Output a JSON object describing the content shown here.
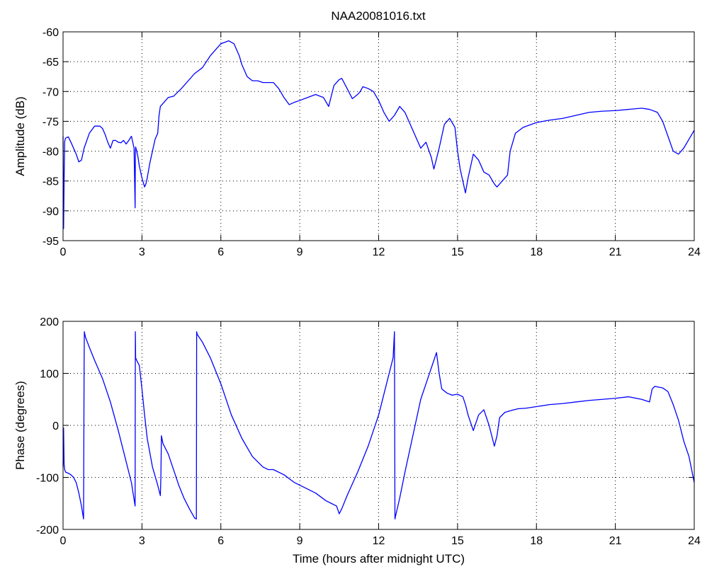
{
  "figure": {
    "title": "NAA20081016.txt"
  },
  "chart_data": [
    {
      "type": "line",
      "title": "NAA20081016.txt",
      "xlabel": "",
      "ylabel": "Amplitude (dB)",
      "xlim": [
        0,
        24
      ],
      "ylim": [
        -95,
        -60
      ],
      "xticks": [
        "0",
        "3",
        "6",
        "9",
        "12",
        "15",
        "18",
        "21",
        "24"
      ],
      "yticks": [
        "-60",
        "-65",
        "-70",
        "-75",
        "-80",
        "-85",
        "-90",
        "-95"
      ],
      "grid": true,
      "line_color": "#0000ff",
      "series": [
        {
          "x": [
            0,
            0.02,
            0.04,
            0.06,
            0.08,
            0.1,
            0.2,
            0.3,
            0.5,
            0.6,
            0.7,
            0.8,
            1.0,
            1.2,
            1.4,
            1.5,
            1.6,
            1.7,
            1.8,
            1.9,
            2.0,
            2.1,
            2.2,
            2.3,
            2.4,
            2.5,
            2.6,
            2.7,
            2.74,
            2.75,
            2.76,
            2.8,
            2.85,
            2.9,
            3.0,
            3.1,
            3.15,
            3.2,
            3.3,
            3.4,
            3.5,
            3.6,
            3.65,
            3.7,
            3.8,
            4.0,
            4.2,
            4.5,
            5.0,
            5.3,
            5.6,
            6.0,
            6.3,
            6.5,
            6.7,
            6.8,
            6.9,
            7.0,
            7.2,
            7.4,
            7.6,
            7.8,
            8.0,
            8.2,
            8.4,
            8.6,
            8.8,
            9.0,
            9.3,
            9.6,
            9.9,
            10.1,
            10.3,
            10.5,
            10.6,
            10.8,
            11.0,
            11.2,
            11.3,
            11.4,
            11.6,
            11.8,
            12.0,
            12.2,
            12.4,
            12.6,
            12.8,
            13.0,
            13.2,
            13.4,
            13.6,
            13.8,
            14.0,
            14.1,
            14.3,
            14.5,
            14.7,
            14.9,
            15.0,
            15.1,
            15.3,
            15.4,
            15.6,
            15.8,
            16.0,
            16.2,
            16.4,
            16.5,
            16.7,
            16.9,
            17.0,
            17.2,
            17.5,
            18.0,
            18.5,
            19.0,
            19.5,
            20.0,
            20.5,
            21.0,
            21.5,
            22.0,
            22.3,
            22.6,
            22.8,
            23.0,
            23.2,
            23.4,
            23.6,
            23.8,
            24.0
          ],
          "y": [
            -77.5,
            -93,
            -85,
            -78.5,
            -78,
            -77.8,
            -77.6,
            -78.5,
            -80.5,
            -81.8,
            -81.5,
            -79.5,
            -77,
            -75.8,
            -75.8,
            -76.2,
            -77.2,
            -78.5,
            -79.5,
            -78.2,
            -78.2,
            -78.5,
            -78.6,
            -78.2,
            -78.8,
            -78.2,
            -77.5,
            -79.5,
            -89.5,
            -80.5,
            -79.3,
            -80,
            -81,
            -82.5,
            -84.5,
            -86,
            -85.5,
            -84.5,
            -82,
            -80,
            -78,
            -77,
            -74,
            -72.5,
            -72,
            -71,
            -70.8,
            -69.5,
            -67,
            -66,
            -64,
            -62,
            -61.5,
            -62,
            -64,
            -65.5,
            -66.5,
            -67.5,
            -68.2,
            -68.2,
            -68.5,
            -68.5,
            -68.5,
            -69.5,
            -71,
            -72.2,
            -71.8,
            -71.5,
            -71,
            -70.5,
            -71,
            -72.5,
            -69,
            -68,
            -67.8,
            -69.5,
            -71.2,
            -70.5,
            -70,
            -69.2,
            -69.5,
            -70,
            -71.5,
            -73.5,
            -75,
            -74,
            -72.5,
            -73.5,
            -75.5,
            -77.5,
            -79.5,
            -78.5,
            -81,
            -83,
            -79.5,
            -75.5,
            -74.5,
            -76,
            -80,
            -83,
            -87,
            -84.5,
            -80.5,
            -81.5,
            -83.5,
            -84,
            -85.5,
            -86,
            -85,
            -84,
            -80,
            -77,
            -76,
            -75.2,
            -74.8,
            -74.5,
            -74,
            -73.5,
            -73.3,
            -73.2,
            -73,
            -72.8,
            -73,
            -73.5,
            -75,
            -77.5,
            -80,
            -80.5,
            -79.5,
            -78,
            -76.5
          ]
        }
      ]
    },
    {
      "type": "line",
      "title": "",
      "xlabel": "Time (hours after midnight UTC)",
      "ylabel": "Phase (degrees)",
      "xlim": [
        0,
        24
      ],
      "ylim": [
        -200,
        200
      ],
      "xticks": [
        "0",
        "3",
        "6",
        "9",
        "12",
        "15",
        "18",
        "21",
        "24"
      ],
      "yticks": [
        "200",
        "100",
        "0",
        "-100",
        "-200"
      ],
      "grid": true,
      "line_color": "#0000ff",
      "series": [
        {
          "x": [
            0,
            0.02,
            0.04,
            0.06,
            0.1,
            0.2,
            0.3,
            0.4,
            0.5,
            0.6,
            0.7,
            0.78,
            0.8,
            0.81,
            0.85,
            1.0,
            1.2,
            1.5,
            1.8,
            2.1,
            2.4,
            2.6,
            2.74,
            2.75,
            2.76,
            2.8,
            2.9,
            3.0,
            3.1,
            3.2,
            3.4,
            3.6,
            3.7,
            3.72,
            3.74,
            3.76,
            3.8,
            4.0,
            4.2,
            4.4,
            4.6,
            4.8,
            5.0,
            5.07,
            5.08,
            5.1,
            5.3,
            5.6,
            6.0,
            6.4,
            6.8,
            7.2,
            7.6,
            7.8,
            8.0,
            8.4,
            8.8,
            9.2,
            9.6,
            10.0,
            10.2,
            10.4,
            10.5,
            10.6,
            10.8,
            11.2,
            11.6,
            12.0,
            12.3,
            12.55,
            12.6,
            12.62,
            12.64,
            12.8,
            13.0,
            13.3,
            13.6,
            13.9,
            14.1,
            14.2,
            14.3,
            14.4,
            14.6,
            14.8,
            15.0,
            15.2,
            15.3,
            15.4,
            15.6,
            15.8,
            16.0,
            16.2,
            16.4,
            16.5,
            16.6,
            16.8,
            17.0,
            17.3,
            17.6,
            18.0,
            18.5,
            19.0,
            19.5,
            20.0,
            20.5,
            21.0,
            21.5,
            22.0,
            22.3,
            22.4,
            22.5,
            22.8,
            23.0,
            23.2,
            23.4,
            23.6,
            23.8,
            24.0
          ],
          "y": [
            -80,
            -5,
            -75,
            -85,
            -90,
            -92,
            -95,
            -100,
            -110,
            -130,
            -155,
            -180,
            110,
            180,
            170,
            150,
            125,
            90,
            45,
            -10,
            -70,
            -110,
            -155,
            180,
            130,
            125,
            115,
            70,
            20,
            -25,
            -80,
            -115,
            -135,
            -100,
            -20,
            -25,
            -35,
            -55,
            -85,
            -115,
            -140,
            -160,
            -178,
            -180,
            180,
            175,
            160,
            130,
            80,
            20,
            -25,
            -60,
            -80,
            -85,
            -85,
            -95,
            -110,
            -120,
            -130,
            -145,
            -150,
            -155,
            -170,
            -160,
            -135,
            -90,
            -40,
            20,
            80,
            130,
            180,
            -180,
            -175,
            -140,
            -90,
            -20,
            50,
            95,
            125,
            140,
            100,
            70,
            62,
            58,
            60,
            55,
            40,
            20,
            -10,
            20,
            30,
            0,
            -40,
            -20,
            15,
            25,
            28,
            32,
            33,
            36,
            40,
            42,
            45,
            48,
            50,
            52,
            55,
            50,
            45,
            70,
            75,
            72,
            65,
            40,
            10,
            -30,
            -60,
            -110
          ]
        }
      ]
    }
  ]
}
